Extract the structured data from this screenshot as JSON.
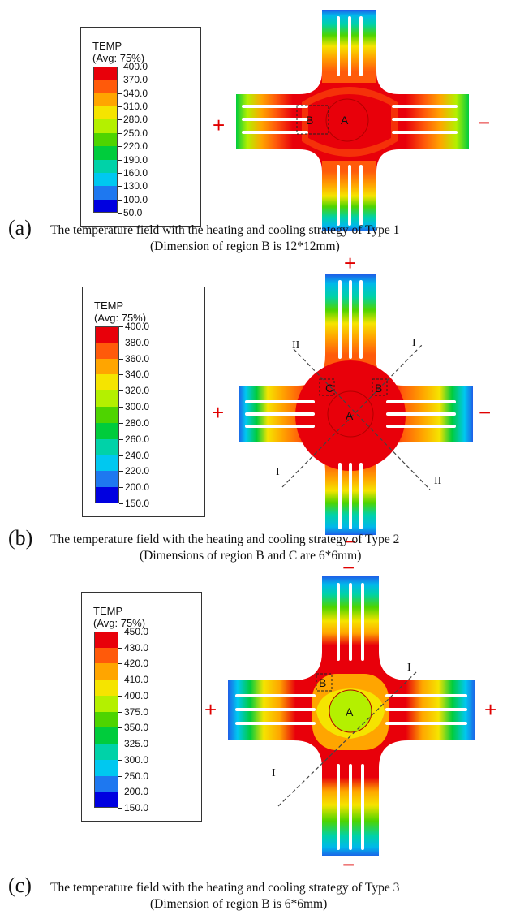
{
  "panels": [
    {
      "letter": "(a)",
      "caption_line1": "The temperature field with the heating and cooling strategy of Type 1",
      "caption_line2": "(Dimension of region B is 12*12mm)",
      "legend": {
        "title": "TEMP",
        "subtitle": "(Avg: 75%)",
        "values": [
          "400.0",
          "370.0",
          "340.0",
          "310.0",
          "280.0",
          "250.0",
          "220.0",
          "190.0",
          "160.0",
          "130.0",
          "100.0",
          "50.0"
        ],
        "colors": [
          "#e8000a",
          "#ff5a0a",
          "#ffa500",
          "#f5e400",
          "#b4f000",
          "#4ed400",
          "#00cc3c",
          "#00d2a8",
          "#00c8f0",
          "#1e78f0",
          "#0000e0"
        ]
      },
      "labels": {
        "A": "A",
        "B": "B",
        "left_sign": "+",
        "right_sign": "−"
      }
    },
    {
      "letter": "(b)",
      "caption_line1": "The temperature field with the heating and cooling strategy of Type 2",
      "caption_line2": "(Dimensions of region B and C are 6*6mm)",
      "legend": {
        "title": "TEMP",
        "subtitle": "(Avg: 75%)",
        "values": [
          "400.0",
          "380.0",
          "360.0",
          "340.0",
          "320.0",
          "300.0",
          "280.0",
          "260.0",
          "240.0",
          "220.0",
          "200.0",
          "150.0"
        ],
        "colors": [
          "#e8000a",
          "#ff5a0a",
          "#ffa500",
          "#f5e400",
          "#b4f000",
          "#4ed400",
          "#00cc3c",
          "#00d2a8",
          "#00c8f0",
          "#1e78f0",
          "#0000e0"
        ]
      },
      "labels": {
        "A": "A",
        "B": "B",
        "C": "C",
        "top_sign": "+",
        "bottom_sign": "−",
        "left_sign": "+",
        "right_sign": "−",
        "I": "I",
        "II": "II"
      }
    },
    {
      "letter": "(c)",
      "caption_line1": "The temperature field with the heating and cooling strategy of Type 3",
      "caption_line2": "(Dimension of region B is 6*6mm)",
      "legend": {
        "title": "TEMP",
        "subtitle": "(Avg: 75%)",
        "values": [
          "450.0",
          "430.0",
          "420.0",
          "410.0",
          "400.0",
          "375.0",
          "350.0",
          "325.0",
          "300.0",
          "250.0",
          "200.0",
          "150.0"
        ],
        "colors": [
          "#e8000a",
          "#ff5a0a",
          "#ffa500",
          "#f5e400",
          "#b4f000",
          "#4ed400",
          "#00cc3c",
          "#00d2a8",
          "#00c8f0",
          "#1e78f0",
          "#0000e0"
        ]
      },
      "labels": {
        "A": "A",
        "B": "B",
        "top_sign": "−",
        "bottom_sign": "−",
        "left_sign": "+",
        "right_sign": "+",
        "I": "I"
      }
    }
  ]
}
